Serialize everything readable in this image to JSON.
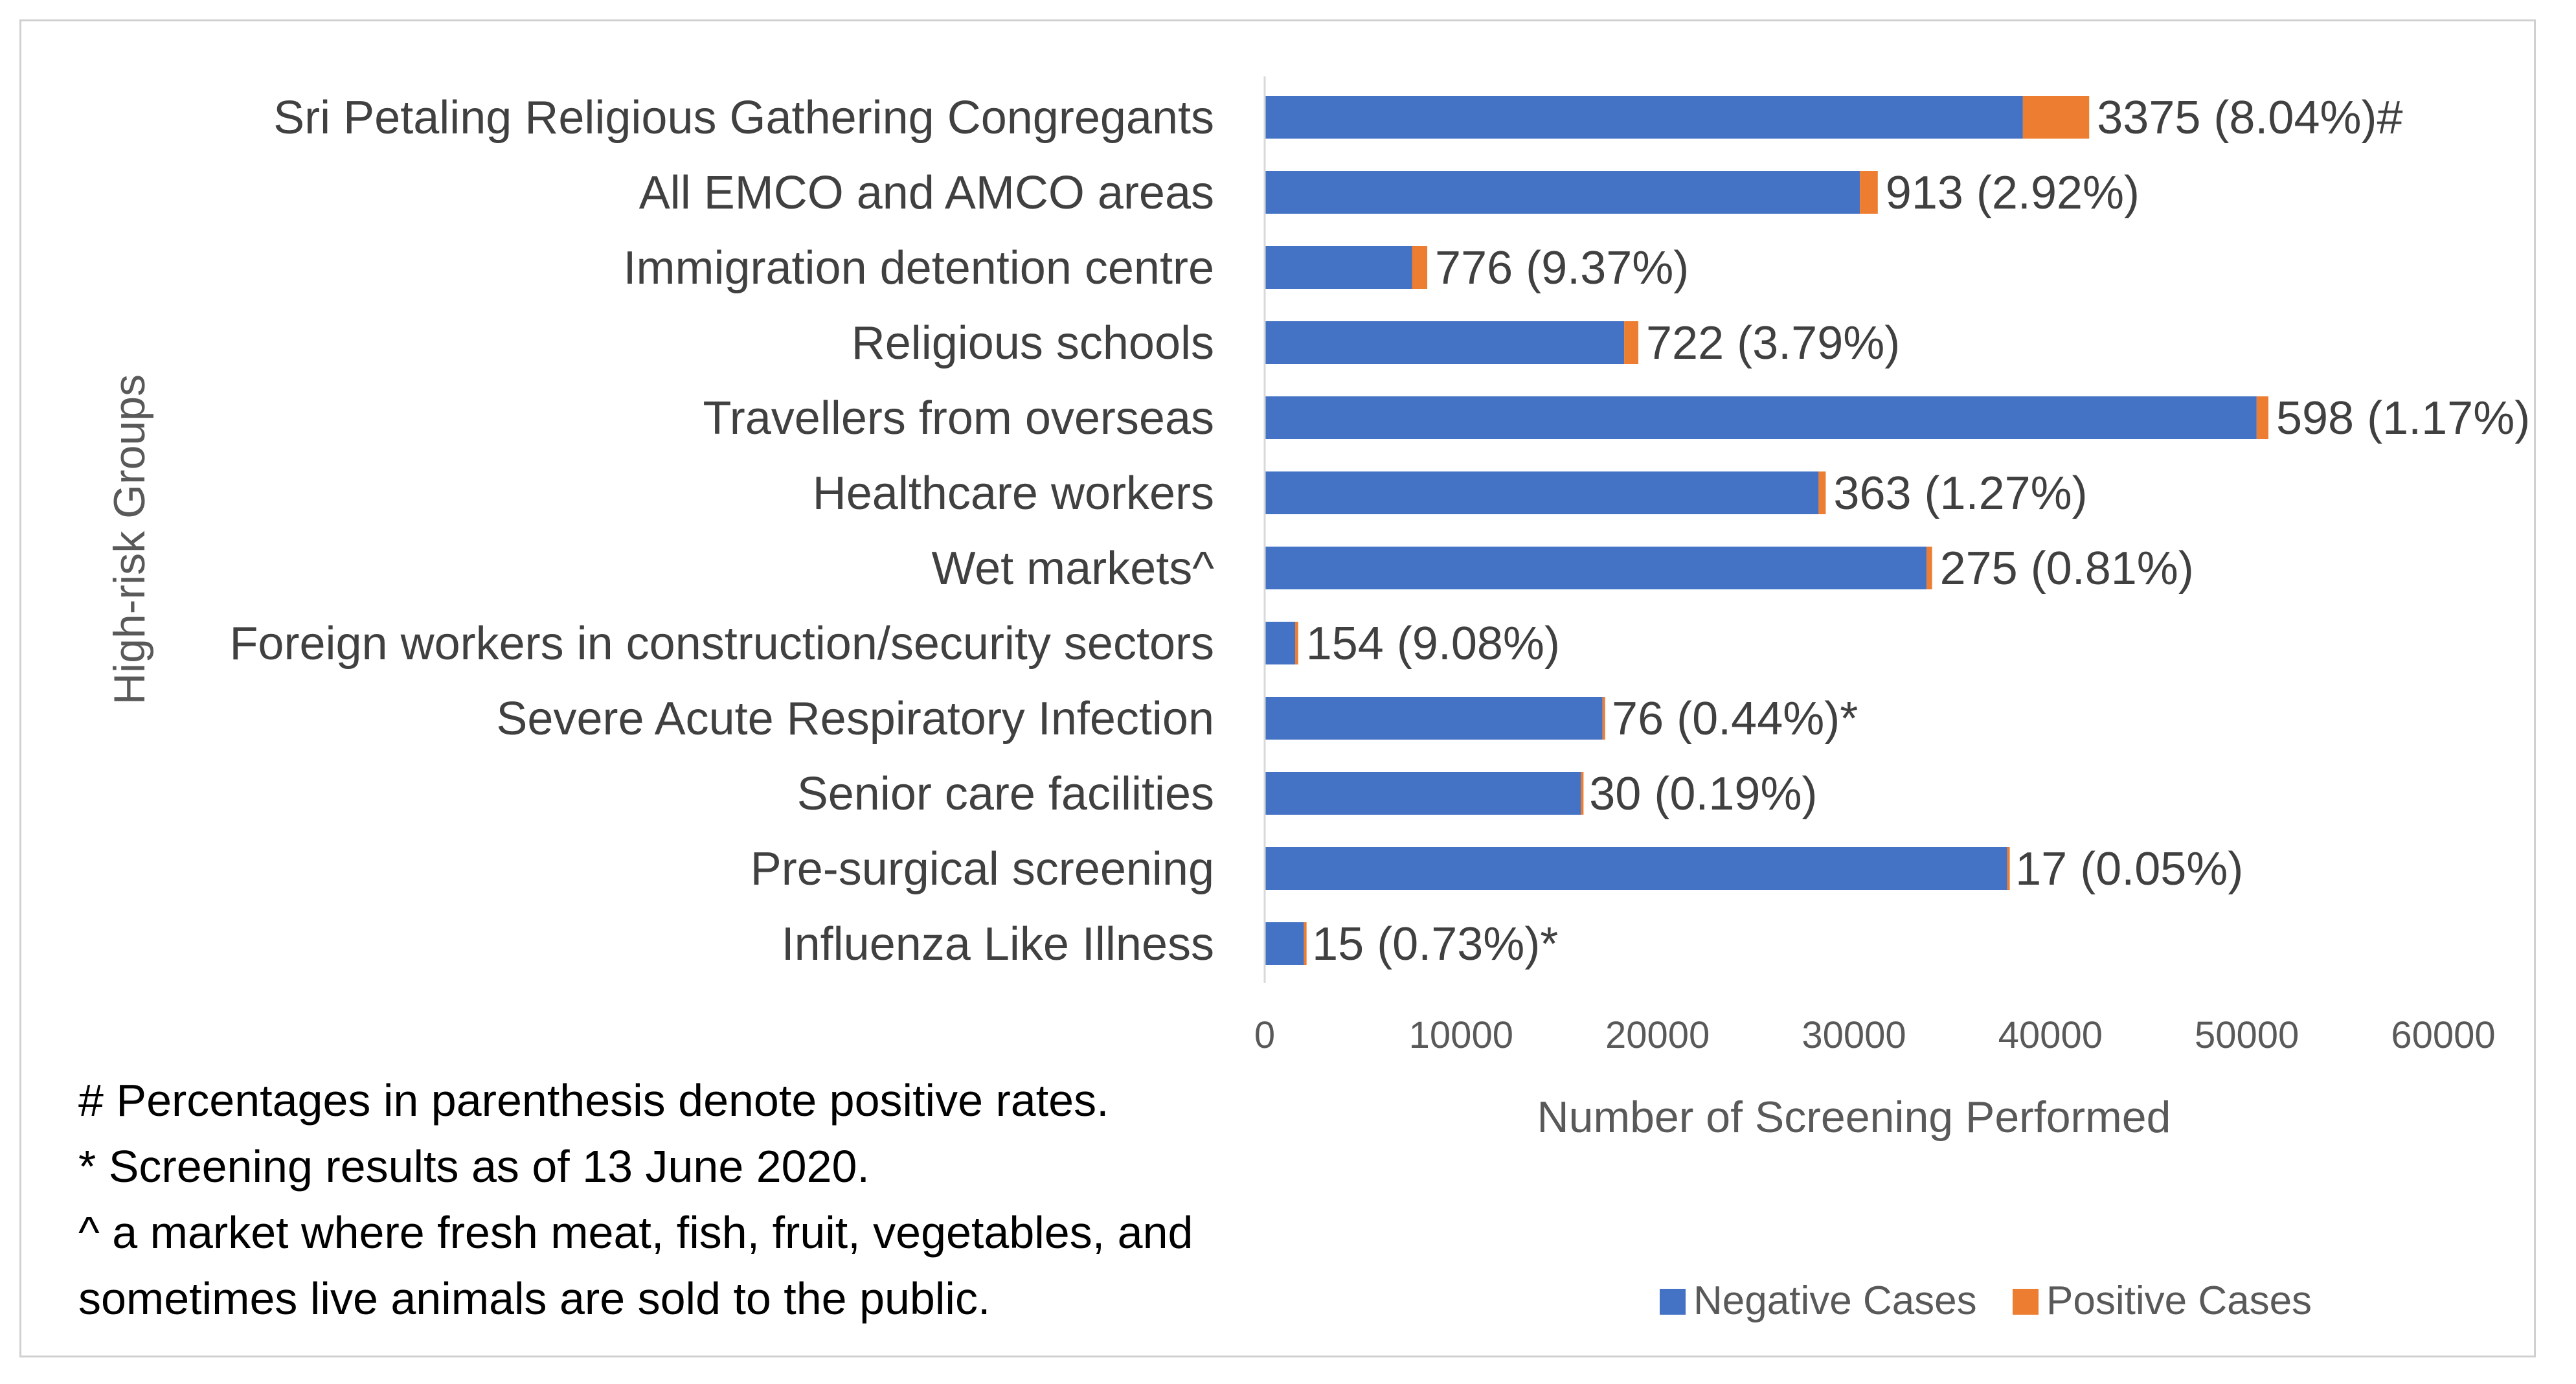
{
  "chart_data": {
    "type": "bar",
    "orientation": "horizontal",
    "stacked": true,
    "title": "",
    "xlabel": "Number of Screening Performed",
    "ylabel": "High-risk Groups",
    "xlim": [
      0,
      60000
    ],
    "xticks": [
      0,
      10000,
      20000,
      30000,
      40000,
      50000,
      60000
    ],
    "grid": false,
    "legend_position": "bottom-right",
    "categories": [
      "Sri Petaling Religious Gathering Congregants",
      "All EMCO and AMCO areas",
      "Immigration detention centre",
      "Religious schools",
      "Travellers from overseas",
      "Healthcare workers",
      "Wet markets^",
      "Foreign workers in construction/security sectors",
      "Severe Acute Respiratory Infection",
      "Senior care facilities",
      "Pre-surgical screening",
      "Influenza Like Illness"
    ],
    "series": [
      {
        "name": "Negative Cases",
        "color": "#4472C4",
        "values": [
          38600,
          30300,
          7500,
          18300,
          50500,
          28200,
          33700,
          1550,
          17200,
          16100,
          37800,
          2000
        ]
      },
      {
        "name": "Positive Cases",
        "color": "#ED7D31",
        "values": [
          3375,
          913,
          776,
          722,
          598,
          363,
          275,
          154,
          76,
          30,
          17,
          15
        ]
      }
    ],
    "data_labels": [
      "3375 (8.04%)#",
      "913 (2.92%)",
      "776 (9.37%)",
      "722 (3.79%)",
      "598 (1.17%)",
      "363 (1.27%)",
      "275 (0.81%)",
      "154 (9.08%)",
      "76 (0.44%)*",
      "30 (0.19%)",
      "17 (0.05%)",
      "15 (0.73%)*"
    ]
  },
  "footnotes": [
    "# Percentages in parenthesis denote positive rates.",
    "* Screening results as of 13 June 2020.",
    "^ a market where fresh meat, fish, fruit, vegetables, and",
    "sometimes live animals are sold to the public."
  ]
}
